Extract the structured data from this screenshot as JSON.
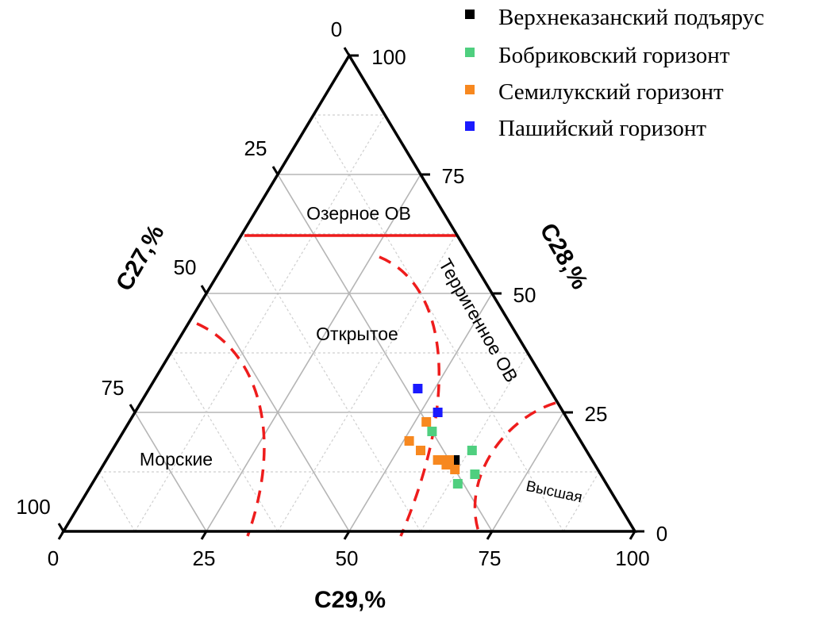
{
  "chart_data": {
    "type": "ternary-scatter",
    "axes": {
      "bottom": {
        "label": "C29,%",
        "ticks": [
          "0",
          "25",
          "50",
          "75",
          "100"
        ]
      },
      "left": {
        "label": "C27,%",
        "ticks": [
          "0",
          "25",
          "50",
          "75",
          "100"
        ]
      },
      "right": {
        "label": "C28,%",
        "ticks": [
          "100",
          "75",
          "50",
          "25",
          "0"
        ]
      }
    },
    "grid_step": 12.5,
    "regions": [
      {
        "label": "Озерное ОВ"
      },
      {
        "label": "Открытое"
      },
      {
        "label": "Терригенное ОВ"
      },
      {
        "label": "Морские"
      },
      {
        "label": "Высшая"
      }
    ],
    "series": [
      {
        "name": "Верхнеказанский подъярус",
        "color": "#000000",
        "points": [
          {
            "c27": 24,
            "c28": 15,
            "c29": 61
          }
        ]
      },
      {
        "name": "Бобриковский горизонт",
        "color": "#4fcf7f",
        "points": [
          {
            "c27": 26,
            "c28": 10,
            "c29": 64
          },
          {
            "c27": 22,
            "c28": 12,
            "c29": 66
          },
          {
            "c27": 25,
            "c28": 21,
            "c29": 54
          },
          {
            "c27": 20,
            "c28": 17,
            "c29": 63
          }
        ]
      },
      {
        "name": "Семилукский горизонт",
        "color": "#f7881f",
        "points": [
          {
            "c27": 25,
            "c28": 23,
            "c29": 52
          },
          {
            "c27": 30,
            "c28": 19,
            "c29": 51
          },
          {
            "c27": 29,
            "c28": 17,
            "c29": 54
          },
          {
            "c27": 27,
            "c28": 15,
            "c29": 58
          },
          {
            "c27": 26,
            "c28": 15,
            "c29": 59
          },
          {
            "c27": 26,
            "c28": 14,
            "c29": 60
          },
          {
            "c27": 25,
            "c28": 15,
            "c29": 60
          },
          {
            "c27": 25,
            "c28": 13,
            "c29": 62
          }
        ]
      },
      {
        "name": "Пашийский горизонт",
        "color": "#1a1aff",
        "points": [
          {
            "c27": 23,
            "c28": 30,
            "c29": 47
          },
          {
            "c27": 22,
            "c28": 25,
            "c29": 53
          }
        ]
      }
    ],
    "legend": "top-right"
  }
}
